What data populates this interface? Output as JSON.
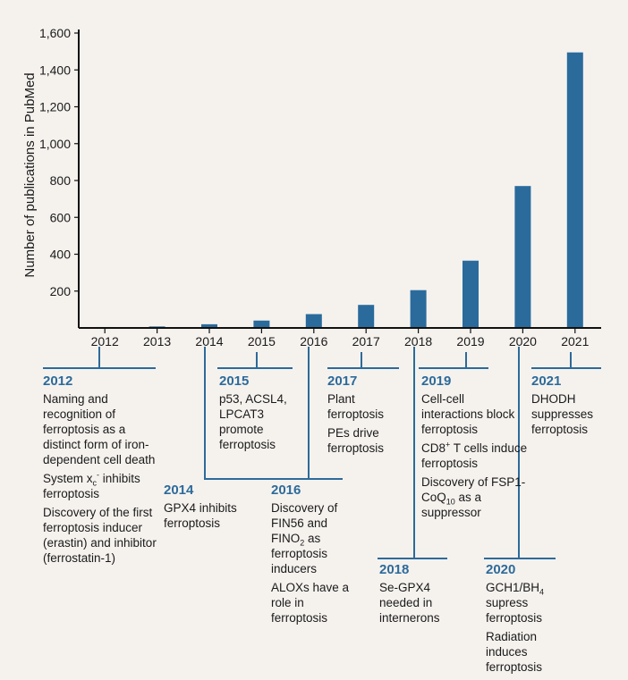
{
  "chart_data": {
    "type": "bar",
    "ylabel": "Number of publications in PubMed",
    "categories": [
      "2012",
      "2013",
      "2014",
      "2015",
      "2016",
      "2017",
      "2018",
      "2019",
      "2020",
      "2021"
    ],
    "values": [
      5,
      8,
      20,
      40,
      75,
      125,
      205,
      365,
      770,
      1495
    ],
    "ylim": [
      0,
      1600
    ],
    "yticks": [
      200,
      400,
      600,
      800,
      1000,
      1200,
      1400,
      1600
    ],
    "ytick_labels": [
      "200",
      "400",
      "600",
      "800",
      "1,000",
      "1,200",
      "1,400",
      "1,600"
    ],
    "bar_color": "#2a6b9c"
  },
  "timeline": {
    "e2012": {
      "year": "2012",
      "items": [
        "Naming and recognition of ferroptosis as a distinct form of iron-dependent cell death",
        "System x_c^- inhibits ferroptosis",
        "Discovery of the first ferroptosis inducer (erastin) and inhibitor (ferrostatin-1)"
      ]
    },
    "e2014": {
      "year": "2014",
      "items": [
        "GPX4 inhibits ferroptosis"
      ]
    },
    "e2015": {
      "year": "2015",
      "items": [
        "p53, ACSL4, LPCAT3 promote ferroptosis"
      ]
    },
    "e2016": {
      "year": "2016",
      "items": [
        "Discovery of FIN56 and FINO_2 as ferroptosis inducers",
        "ALOXs have a role in ferroptosis"
      ]
    },
    "e2017": {
      "year": "2017",
      "items": [
        "Plant ferroptosis",
        "PEs drive ferroptosis"
      ]
    },
    "e2018": {
      "year": "2018",
      "items": [
        "Se-GPX4 needed in internerons"
      ]
    },
    "e2019": {
      "year": "2019",
      "items": [
        "Cell-cell interactions block ferroptosis",
        "CD8^+ T cells induce ferroptosis",
        "Discovery of FSP1-CoQ_10 as a suppressor"
      ]
    },
    "e2020": {
      "year": "2020",
      "items": [
        "GCH1/BH_4 supress ferroptosis",
        "Radiation induces ferroptosis"
      ]
    },
    "e2021": {
      "year": "2021",
      "items": [
        "DHODH suppresses ferroptosis"
      ]
    }
  }
}
